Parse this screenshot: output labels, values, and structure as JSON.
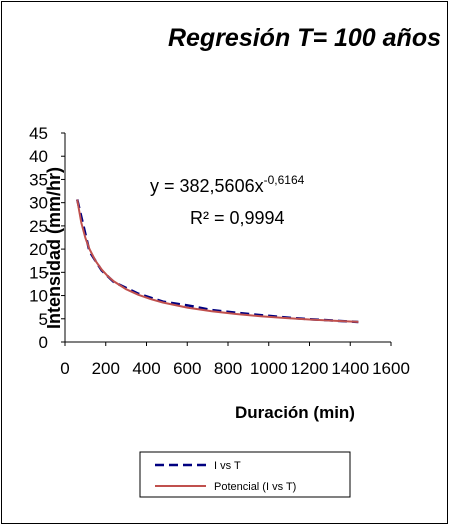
{
  "chart_data": {
    "type": "line",
    "title": "Regresión T= 100 años",
    "xlabel": "Duración (min)",
    "ylabel": "Intensidad (mm/hr)",
    "xlim": [
      0,
      1600
    ],
    "ylim": [
      0,
      45
    ],
    "x_ticks": [
      "0",
      "200",
      "400",
      "600",
      "800",
      "1000",
      "1200",
      "1400",
      "1600"
    ],
    "y_ticks": [
      "0",
      "5",
      "10",
      "15",
      "20",
      "25",
      "30",
      "35",
      "40",
      "45"
    ],
    "grid": false,
    "legend_position": "bottom",
    "series": [
      {
        "name": "I vs T",
        "style": "dashed",
        "color": "#000080",
        "x": [
          60,
          120,
          180,
          240,
          360,
          480,
          600,
          720,
          840,
          960,
          1080,
          1200,
          1320,
          1440
        ],
        "y": [
          30.7,
          19.5,
          15.4,
          12.9,
          10.4,
          8.7,
          7.9,
          6.9,
          6.3,
          5.8,
          5.3,
          4.9,
          4.6,
          4.3
        ]
      },
      {
        "name": "Potencial (I vs T)",
        "style": "solid",
        "color": "#c0504d",
        "fit": {
          "a": 382.5606,
          "b": -0.6164
        },
        "x": [
          60,
          80,
          100,
          120,
          150,
          180,
          210,
          240,
          300,
          360,
          420,
          480,
          600,
          720,
          840,
          960,
          1080,
          1200,
          1320,
          1440
        ]
      }
    ],
    "annotations": [
      "y = 382,5606x",
      "-0,6164",
      "R² = 0,9994"
    ]
  }
}
